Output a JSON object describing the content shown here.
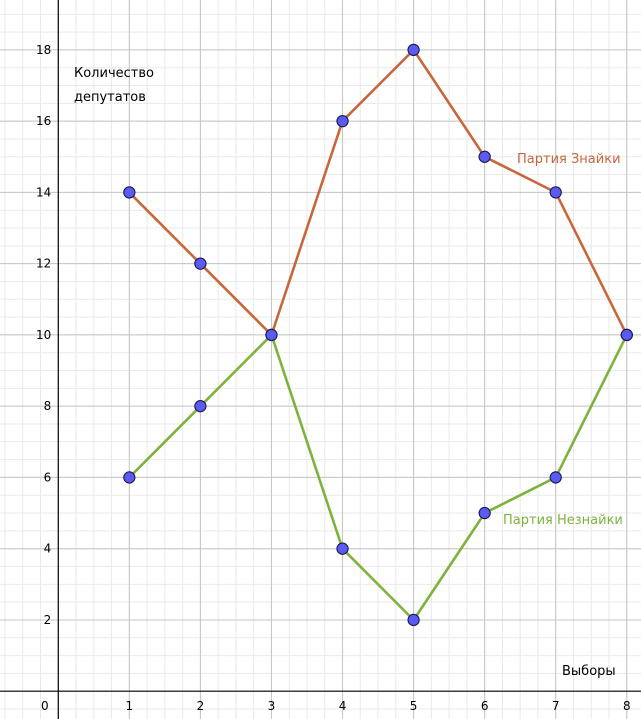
{
  "chart_data": {
    "type": "line",
    "x": [
      1,
      2,
      3,
      4,
      5,
      6,
      7,
      8
    ],
    "series": [
      {
        "name": "Партия Знайки",
        "color": "#c8673b",
        "values": [
          14,
          12,
          10,
          16,
          18,
          15,
          14,
          10
        ]
      },
      {
        "name": "Партия Незнайки",
        "color": "#7cb33b",
        "values": [
          6,
          8,
          10,
          4,
          2,
          5,
          6,
          10
        ]
      }
    ],
    "ylabel_lines": [
      "Количество",
      "депутатов"
    ],
    "xlabel": "Выборы",
    "origin_label": "0",
    "xticks": [
      "1",
      "2",
      "3",
      "4",
      "5",
      "6",
      "7",
      "8"
    ],
    "yticks": [
      "2",
      "4",
      "6",
      "8",
      "10",
      "12",
      "14",
      "16",
      "18"
    ],
    "xlim": [
      -0.82,
      8.2
    ],
    "ylim": [
      -0.78,
      19.4
    ],
    "grid": true,
    "point_color": "#5b5bf2",
    "axis_color": "#000000"
  }
}
